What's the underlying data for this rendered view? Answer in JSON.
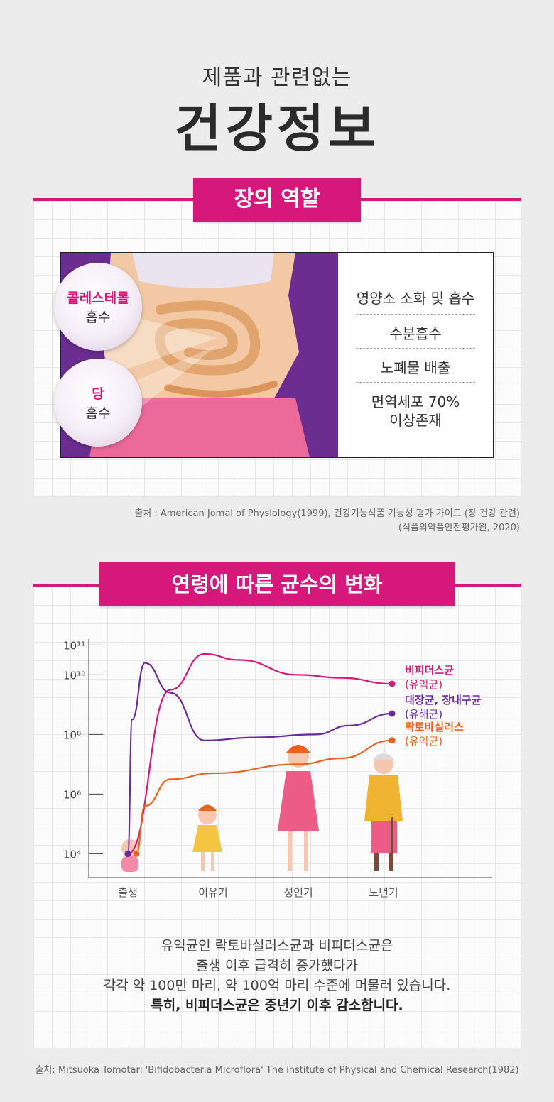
{
  "header": {
    "subtitle": "제품과 관련없는",
    "title": "건강정보"
  },
  "section1": {
    "title": "장의 역할",
    "bubbles": [
      {
        "highlight": "콜레스테롤",
        "text": "흡수"
      },
      {
        "highlight": "당",
        "text": "흡수"
      }
    ],
    "roles": [
      "영양소 소화 및 흡수",
      "수분흡수",
      "노폐물 배출",
      "면역세포 70%",
      "이상존재"
    ],
    "source_line1": "출처 : American Jomal of Physiology(1999), 건강기능식품 기능성 평가 가이드 (장 건강 관련)",
    "source_line2": "(식품의약품안전평가원, 2020)"
  },
  "section2": {
    "title": "연령에 따른 균수의 변화",
    "desc_line1": "유익균인 락토바실러스균과 비피더스균은",
    "desc_line2": "출생 이후 급격히 증가했다가",
    "desc_line3": "각각 약 100만 마리, 약 100억 마리 수준에 머물러 있습니다.",
    "desc_bold": "특히, 비피더스균은 중년기 이후 감소합니다."
  },
  "chart_data": {
    "type": "line",
    "y_scale": "log",
    "y_ticks": [
      "10¹¹",
      "10¹⁰",
      "10⁸",
      "10⁶",
      "10⁴"
    ],
    "y_tick_values": [
      11,
      10,
      8,
      6,
      4
    ],
    "ylim_log10": [
      3.2,
      11.2
    ],
    "categories": [
      "출생",
      "이유기",
      "성인기",
      "노년기"
    ],
    "series": [
      {
        "name": "비피더스균",
        "sub": "(유익균)",
        "color": "#d6187a",
        "points": [
          [
            0,
            4
          ],
          [
            0.5,
            9.5
          ],
          [
            0.9,
            10.7
          ],
          [
            1.3,
            10.5
          ],
          [
            2.0,
            10.0
          ],
          [
            2.5,
            9.9
          ],
          [
            3.1,
            9.7
          ]
        ]
      },
      {
        "name": "대장균, 장내구균",
        "sub": "(유해균)",
        "color": "#6a2aa0",
        "points": [
          [
            0,
            4
          ],
          [
            0.05,
            8.5
          ],
          [
            0.2,
            10.4
          ],
          [
            0.5,
            9.4
          ],
          [
            0.9,
            7.8
          ],
          [
            1.5,
            7.9
          ],
          [
            2.2,
            8.0
          ],
          [
            2.6,
            8.3
          ],
          [
            3.1,
            8.7
          ]
        ]
      },
      {
        "name": "락토바실러스",
        "sub": "(유익균)",
        "color": "#e8641e",
        "points": [
          [
            0.1,
            4
          ],
          [
            0.2,
            5.6
          ],
          [
            0.5,
            6.5
          ],
          [
            1.0,
            6.7
          ],
          [
            2.0,
            7.0
          ],
          [
            2.5,
            7.2
          ],
          [
            3.1,
            7.8
          ]
        ]
      }
    ],
    "source": "출처: Mitsuoka Tomotari 'Bifidobacteria Microflora' The institute of Physical and Chemical Research(1982)"
  }
}
